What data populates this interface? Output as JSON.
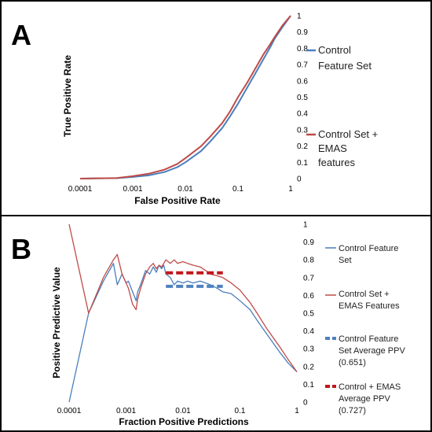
{
  "colors": {
    "blue": "#4a7ebb",
    "red": "#be4b48",
    "dark_red": "#c0171c",
    "mid_blue": "#4f81bd"
  },
  "chart_data": [
    {
      "panel": "A",
      "type": "line",
      "xlabel": "False Positive Rate",
      "ylabel": "True Positive Rate",
      "x_scale": "log",
      "xlim": [
        0.0001,
        1
      ],
      "ylim": [
        0,
        1
      ],
      "x_ticks": [
        "0.0001",
        "0.001",
        "0.01",
        "0.1",
        "1"
      ],
      "x_tick_values": [
        0.0001,
        0.001,
        0.01,
        0.1,
        1
      ],
      "y_ticks": [
        "0",
        "0.1",
        "0.2",
        "0.3",
        "0.4",
        "0.5",
        "0.6",
        "0.7",
        "0.8",
        "0.9",
        "1"
      ],
      "y_tick_values": [
        0,
        0.1,
        0.2,
        0.3,
        0.4,
        0.5,
        0.6,
        0.7,
        0.8,
        0.9,
        1
      ],
      "legend_position": "right",
      "series": [
        {
          "name": "Control Feature Set",
          "legend_lines": [
            "Control",
            "Feature Set"
          ],
          "color": "#4a7ebb",
          "x": [
            0.0001,
            0.0005,
            0.001,
            0.002,
            0.004,
            0.007,
            0.01,
            0.02,
            0.03,
            0.05,
            0.07,
            0.1,
            0.15,
            0.2,
            0.3,
            0.4,
            0.5,
            0.7,
            1.0
          ],
          "y": [
            0,
            0.003,
            0.01,
            0.02,
            0.04,
            0.07,
            0.1,
            0.17,
            0.23,
            0.31,
            0.38,
            0.46,
            0.56,
            0.63,
            0.73,
            0.8,
            0.86,
            0.93,
            1.0
          ]
        },
        {
          "name": "Control Set + EMAS features",
          "legend_lines": [
            "Control Set +",
            "EMAS",
            "features"
          ],
          "color": "#be4b48",
          "x": [
            0.0001,
            0.0005,
            0.001,
            0.002,
            0.004,
            0.007,
            0.01,
            0.02,
            0.03,
            0.05,
            0.07,
            0.1,
            0.15,
            0.2,
            0.3,
            0.4,
            0.5,
            0.7,
            1.0
          ],
          "y": [
            0,
            0.004,
            0.015,
            0.03,
            0.055,
            0.09,
            0.125,
            0.2,
            0.26,
            0.34,
            0.41,
            0.5,
            0.59,
            0.66,
            0.76,
            0.82,
            0.87,
            0.94,
            1.0
          ]
        }
      ]
    },
    {
      "panel": "B",
      "type": "line",
      "xlabel": "Fraction Positive Predictions",
      "ylabel": "Positive Predictive Value",
      "x_scale": "log",
      "xlim": [
        0.0001,
        1
      ],
      "ylim": [
        0,
        1
      ],
      "x_ticks": [
        "0.0001",
        "0.001",
        "0.01",
        "0.1",
        "1"
      ],
      "x_tick_values": [
        0.0001,
        0.001,
        0.01,
        0.1,
        1
      ],
      "y_ticks": [
        "0",
        "0.1",
        "0.2",
        "0.3",
        "0.4",
        "0.5",
        "0.6",
        "0.7",
        "0.8",
        "0.9",
        "1"
      ],
      "y_tick_values": [
        0,
        0.1,
        0.2,
        0.3,
        0.4,
        0.5,
        0.6,
        0.7,
        0.8,
        0.9,
        1
      ],
      "legend_position": "right",
      "series": [
        {
          "name": "Control Feature Set",
          "legend_lines": [
            "Control Feature",
            "Set"
          ],
          "color": "#4a7ebb",
          "style": "solid",
          "x": [
            0.0001,
            0.00022,
            0.0004,
            0.0006,
            0.0007,
            0.00085,
            0.001,
            0.0011,
            0.0013,
            0.0015,
            0.0016,
            0.0018,
            0.0022,
            0.0026,
            0.003,
            0.0034,
            0.0038,
            0.0042,
            0.0046,
            0.005,
            0.006,
            0.007,
            0.008,
            0.01,
            0.012,
            0.015,
            0.02,
            0.025,
            0.03,
            0.04,
            0.05,
            0.07,
            0.1,
            0.15,
            0.2,
            0.3,
            0.5,
            0.7,
            1.0
          ],
          "y": [
            0,
            0.5,
            0.68,
            0.78,
            0.66,
            0.72,
            0.67,
            0.68,
            0.62,
            0.57,
            0.62,
            0.66,
            0.74,
            0.72,
            0.76,
            0.73,
            0.77,
            0.75,
            0.77,
            0.72,
            0.7,
            0.66,
            0.68,
            0.67,
            0.68,
            0.67,
            0.68,
            0.67,
            0.66,
            0.64,
            0.62,
            0.61,
            0.57,
            0.52,
            0.46,
            0.38,
            0.28,
            0.22,
            0.17
          ]
        },
        {
          "name": "Control Set + EMAS Features",
          "legend_lines": [
            "Control Set +",
            "EMAS Features"
          ],
          "color": "#be4b48",
          "style": "solid",
          "x": [
            0.0001,
            0.00022,
            0.0004,
            0.0006,
            0.0007,
            0.00085,
            0.001,
            0.0011,
            0.0013,
            0.0015,
            0.0016,
            0.0018,
            0.0022,
            0.0026,
            0.003,
            0.0034,
            0.0038,
            0.0042,
            0.0046,
            0.005,
            0.006,
            0.007,
            0.008,
            0.01,
            0.012,
            0.015,
            0.02,
            0.025,
            0.03,
            0.04,
            0.05,
            0.07,
            0.1,
            0.15,
            0.2,
            0.3,
            0.5,
            0.7,
            1.0
          ],
          "y": [
            1.0,
            0.5,
            0.7,
            0.8,
            0.83,
            0.72,
            0.67,
            0.64,
            0.55,
            0.52,
            0.58,
            0.64,
            0.72,
            0.76,
            0.78,
            0.75,
            0.77,
            0.76,
            0.78,
            0.8,
            0.78,
            0.8,
            0.78,
            0.79,
            0.78,
            0.77,
            0.76,
            0.74,
            0.72,
            0.71,
            0.7,
            0.67,
            0.63,
            0.56,
            0.5,
            0.41,
            0.31,
            0.24,
            0.17
          ]
        },
        {
          "name": "Control Feature Set Average PPV (0.651)",
          "legend_lines": [
            "Control Feature",
            "Set Average PPV",
            "(0.651)"
          ],
          "color": "#4f81bd",
          "style": "dashed",
          "x": [
            0.005,
            0.05
          ],
          "y": [
            0.651,
            0.651
          ]
        },
        {
          "name": "Control + EMAS Average PPV (0.727)",
          "legend_lines": [
            "Control + EMAS",
            "Average PPV",
            "(0.727)"
          ],
          "color": "#c0171c",
          "style": "dashed",
          "x": [
            0.005,
            0.05
          ],
          "y": [
            0.727,
            0.727
          ]
        }
      ]
    }
  ]
}
